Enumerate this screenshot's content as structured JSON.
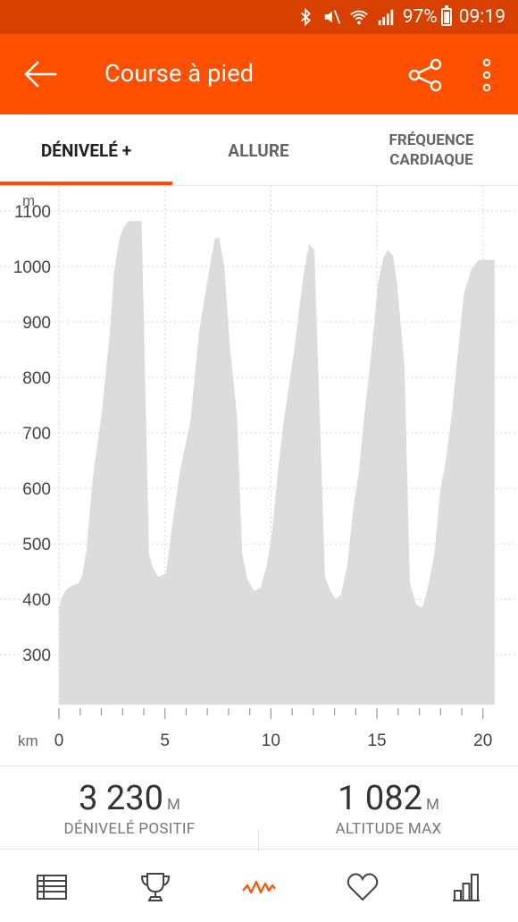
{
  "status_bar": {
    "battery_percent": "97%",
    "time": "09:19",
    "icons": [
      "bluetooth-icon",
      "mute-icon",
      "wifi-icon",
      "signal-icon",
      "battery-icon"
    ]
  },
  "app_bar": {
    "title": "Course à pied",
    "icons": [
      "back-arrow-icon",
      "share-icon",
      "more-vert-icon"
    ]
  },
  "tabs": [
    {
      "label": "DÉNIVELÉ +",
      "active": true
    },
    {
      "label": "ALLURE",
      "active": false
    },
    {
      "label_line1": "FRÉQUENCE",
      "label_line2": "CARDIAQUE",
      "active": false
    }
  ],
  "chart_data": {
    "type": "area",
    "ylabel": "m",
    "xlabel": "km",
    "y_ticks": [
      "300",
      "400",
      "500",
      "600",
      "700",
      "800",
      "900",
      "1000",
      "1100"
    ],
    "x_ticks": [
      "0",
      "5",
      "10",
      "15",
      "20"
    ],
    "ylim": [
      210,
      1145
    ],
    "xlim": [
      0,
      20.6
    ],
    "grid": true,
    "fill_color": "#dcdcdc",
    "series": [
      {
        "x": [
          0,
          0.1,
          0.3,
          0.6,
          0.9,
          1.1,
          1.3,
          1.6,
          2.0,
          2.4,
          2.6,
          2.85,
          3.05,
          3.3,
          3.55,
          3.9,
          4.25,
          4.45,
          4.7,
          5.05,
          5.3,
          5.7,
          6.2,
          6.6,
          7.05,
          7.35,
          7.55,
          7.8,
          8.05,
          8.4,
          8.65,
          8.9,
          9.2,
          9.5,
          9.8,
          10.05,
          10.3,
          10.6,
          11.1,
          11.55,
          11.8,
          12.05,
          12.55,
          12.8,
          13.05,
          13.3,
          13.6,
          13.9,
          14.15,
          14.4,
          14.7,
          15.05,
          15.3,
          15.5,
          15.75,
          15.95,
          16.3,
          16.55,
          16.85,
          17.15,
          17.4,
          17.7,
          18.0,
          18.25,
          18.55,
          18.8,
          19.1,
          19.45,
          19.8,
          20.15,
          20.4,
          20.55
        ],
        "y": [
          380,
          400,
          415,
          425,
          428,
          442,
          490,
          620,
          730,
          880,
          990,
          1050,
          1070,
          1082,
          1082,
          1082,
          480,
          455,
          440,
          447,
          520,
          630,
          720,
          880,
          985,
          1050,
          1052,
          1000,
          860,
          730,
          480,
          435,
          415,
          420,
          460,
          520,
          620,
          720,
          850,
          990,
          1040,
          1030,
          440,
          415,
          400,
          408,
          460,
          570,
          630,
          730,
          830,
          970,
          1015,
          1030,
          1020,
          970,
          820,
          430,
          390,
          385,
          420,
          480,
          600,
          650,
          740,
          840,
          950,
          995,
          1012,
          1012,
          1012,
          1012
        ]
      }
    ]
  },
  "stats": [
    {
      "value": "3 230",
      "unit": "M",
      "label": "DÉNIVELÉ POSITIF"
    },
    {
      "value": "1 082",
      "unit": "M",
      "label": "ALTITUDE MAX"
    }
  ],
  "bottom_nav": [
    {
      "icon": "table-list-icon",
      "active": false,
      "color": "#444444"
    },
    {
      "icon": "trophy-icon",
      "active": false,
      "color": "#444444"
    },
    {
      "icon": "elevation-graph-icon",
      "active": true,
      "color": "#ff5000"
    },
    {
      "icon": "heart-icon",
      "active": false,
      "color": "#444444"
    },
    {
      "icon": "bar-chart-icon",
      "active": false,
      "color": "#444444"
    }
  ],
  "colors": {
    "status_bar": "#d84000",
    "app_bar": "#ff5000",
    "accent": "#ff5000"
  }
}
